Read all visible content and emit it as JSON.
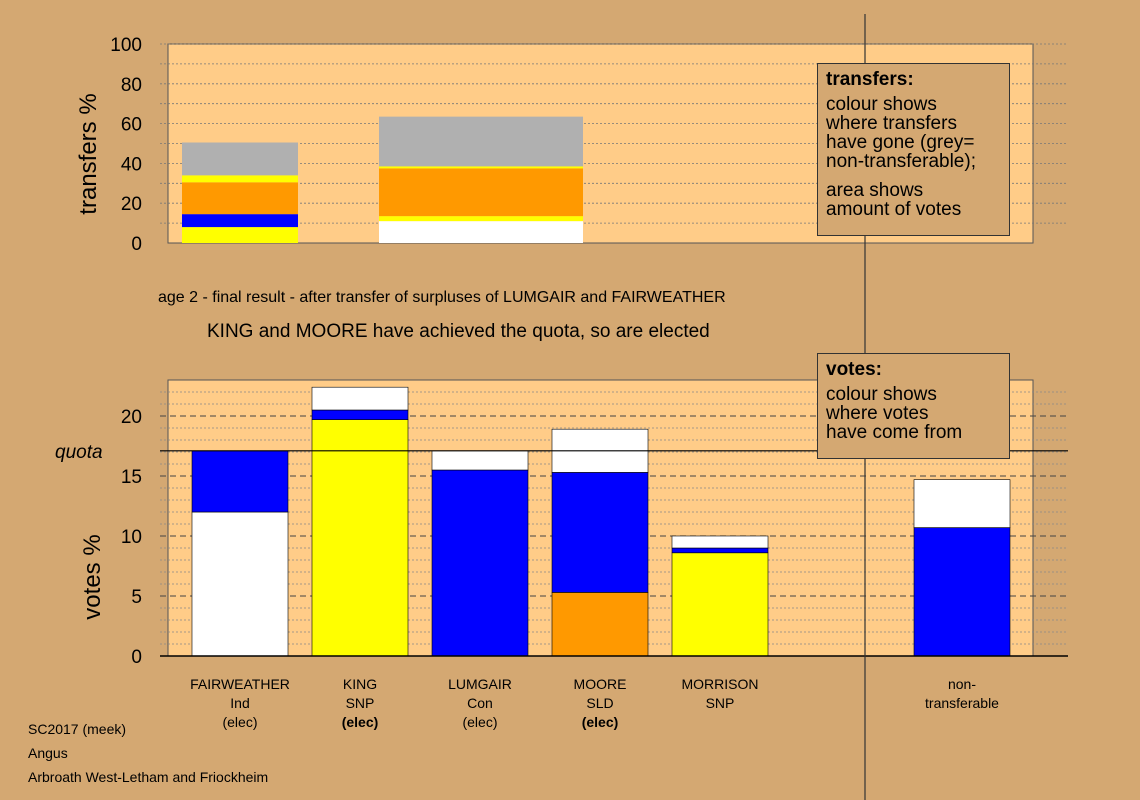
{
  "colors": {
    "background": "#D4A872",
    "plot_background": "#FFCC88",
    "white": "#FFFFFF",
    "yellow": "#FFFF00",
    "blue": "#0000FF",
    "orange": "#FF9900",
    "grey": "#B0B0B0"
  },
  "caption": {
    "stage": "age 2 - final result - after transfer of surpluses of LUMGAIR and FAIRWEATHER",
    "elected": "KING and MOORE have achieved the quota, so are elected"
  },
  "legend_transfers": {
    "title": "transfers:",
    "lines": [
      "colour shows",
      "where transfers",
      "have gone (grey=",
      "non-transferable);"
    ],
    "lines2": [
      "area shows",
      "amount of votes"
    ]
  },
  "legend_votes": {
    "title": "votes:",
    "lines": [
      "colour shows",
      "where votes",
      "have come from"
    ]
  },
  "footer": {
    "line1": "SC2017 (meek)",
    "line2": "Angus",
    "line3": "Arbroath West-Letham and Friockheim"
  },
  "chart_data": [
    {
      "type": "bar",
      "stacked": true,
      "ylabel": "transfers %",
      "ylim": [
        0,
        100
      ],
      "yticks": [
        0,
        20,
        40,
        60,
        80,
        100
      ],
      "bars": [
        {
          "source": "FAIRWEATHER",
          "segments": [
            {
              "color": "yellow",
              "value": 8
            },
            {
              "color": "blue",
              "value": 6.5
            },
            {
              "color": "orange",
              "value": 16
            },
            {
              "color": "yellow",
              "value": 3.5
            },
            {
              "color": "grey",
              "value": 16.5
            }
          ]
        },
        {
          "source": "LUMGAIR",
          "segments": [
            {
              "color": "white",
              "value": 11
            },
            {
              "color": "yellow",
              "value": 2.5
            },
            {
              "color": "orange",
              "value": 24
            },
            {
              "color": "yellow",
              "value": 1
            },
            {
              "color": "grey",
              "value": 25
            }
          ]
        }
      ]
    },
    {
      "type": "bar",
      "stacked": true,
      "ylabel": "votes %",
      "ylim": [
        0,
        23
      ],
      "yticks": [
        0,
        5,
        10,
        15,
        20
      ],
      "quota_label": "quota",
      "quota": 17.1,
      "categories": [
        {
          "name": "FAIRWEATHER",
          "party": "Ind",
          "status": "(elec)",
          "status_bold": false
        },
        {
          "name": "KING",
          "party": "SNP",
          "status": "(elec)",
          "status_bold": true
        },
        {
          "name": "LUMGAIR",
          "party": "Con",
          "status": "(elec)",
          "status_bold": false
        },
        {
          "name": "MOORE",
          "party": "SLD",
          "status": "(elec)",
          "status_bold": true
        },
        {
          "name": "MORRISON",
          "party": "SNP",
          "status": "",
          "status_bold": false
        }
      ],
      "nontransferable_label": [
        "non-",
        "transferable"
      ],
      "bars": [
        {
          "segments": [
            {
              "color": "white",
              "value": 12.0
            },
            {
              "color": "blue",
              "value": 5.1
            }
          ]
        },
        {
          "segments": [
            {
              "color": "yellow",
              "value": 19.7
            },
            {
              "color": "blue",
              "value": 0.8
            },
            {
              "color": "white",
              "value": 1.9
            }
          ]
        },
        {
          "segments": [
            {
              "color": "blue",
              "value": 15.5
            },
            {
              "color": "white",
              "value": 1.6
            }
          ]
        },
        {
          "segments": [
            {
              "color": "orange",
              "value": 5.3
            },
            {
              "color": "blue",
              "value": 10.0
            },
            {
              "color": "white",
              "value": 3.6
            }
          ]
        },
        {
          "segments": [
            {
              "color": "yellow",
              "value": 8.6
            },
            {
              "color": "blue",
              "value": 0.4
            },
            {
              "color": "white",
              "value": 1.0
            }
          ]
        },
        {
          "segments": [
            {
              "color": "blue",
              "value": 10.7
            },
            {
              "color": "white",
              "value": 4.0
            }
          ]
        }
      ]
    }
  ]
}
